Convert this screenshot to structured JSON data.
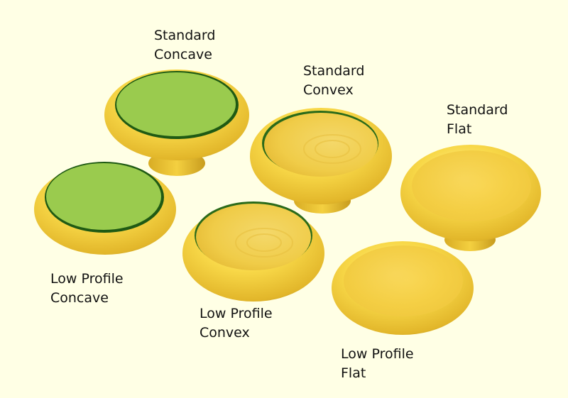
{
  "colors": {
    "background": "#ffffe5",
    "knob_body": "#f6d23e",
    "knob_shadow": "#c9a020",
    "concave_face": "#9acb4e",
    "label_text": "#111111"
  },
  "knobs": [
    {
      "id": "standard-concave",
      "line1": "Standard",
      "line2": "Concave",
      "face": "concave"
    },
    {
      "id": "standard-convex",
      "line1": "Standard",
      "line2": "Convex",
      "face": "convex"
    },
    {
      "id": "standard-flat",
      "line1": "Standard",
      "line2": "Flat",
      "face": "flat"
    },
    {
      "id": "low-profile-concave",
      "line1": "Low Profile",
      "line2": "Concave",
      "face": "concave"
    },
    {
      "id": "low-profile-convex",
      "line1": "Low Profile",
      "line2": "Convex",
      "face": "convex"
    },
    {
      "id": "low-profile-flat",
      "line1": "Low Profile",
      "line2": "Flat",
      "face": "flat"
    }
  ]
}
